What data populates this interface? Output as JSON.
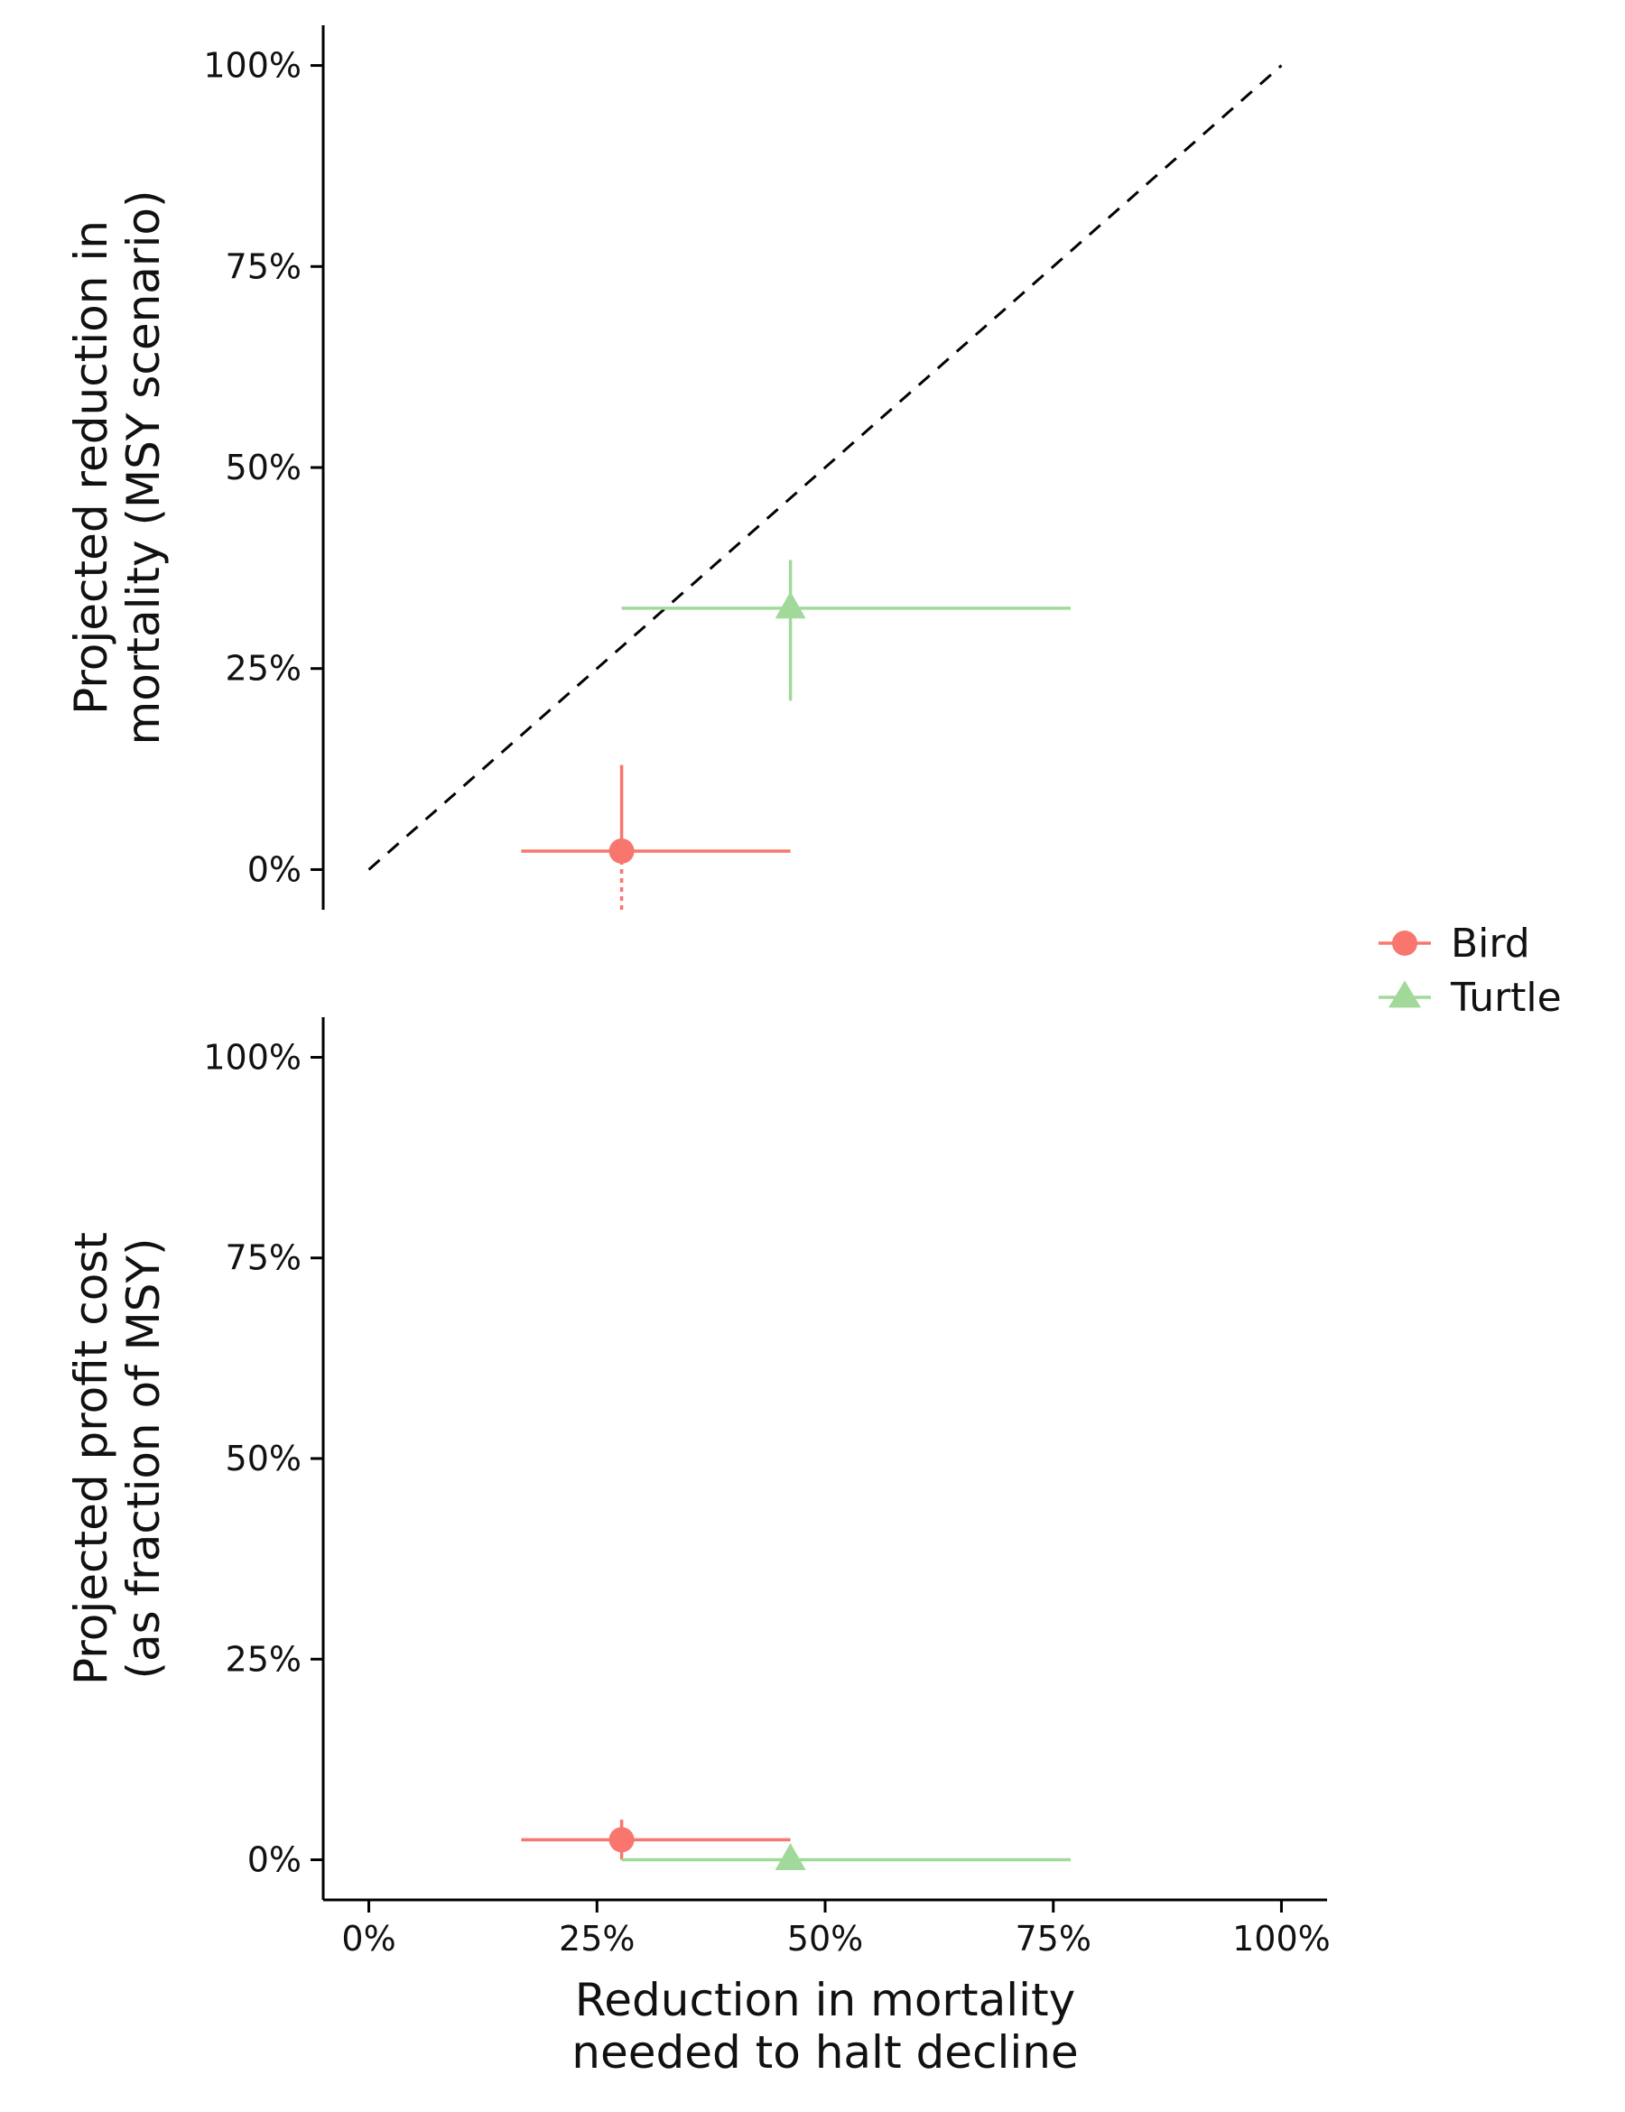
{
  "legend": {
    "position": "right",
    "entries": [
      {
        "name": "Bird",
        "color": "#F8766D",
        "shape": "circle"
      },
      {
        "name": "Turtle",
        "color": "#A1D99B",
        "shape": "triangle"
      }
    ]
  },
  "chart_data": [
    {
      "type": "scatter",
      "panel": "top",
      "ylabel": [
        "Projected reduction in",
        "mortality (MSY scenario)"
      ],
      "xlabel": "",
      "xlim": [
        -0.05,
        1.05
      ],
      "ylim": [
        -0.05,
        1.05
      ],
      "y_ticks": [
        0,
        0.25,
        0.5,
        0.75,
        1.0
      ],
      "y_tick_labels": [
        "0%",
        "25%",
        "50%",
        "75%",
        "100%"
      ],
      "x_ticks": [],
      "x_tick_labels": [],
      "grid": false,
      "reference_line": {
        "style": "dashed",
        "color": "#000000",
        "from": [
          0,
          0
        ],
        "to": [
          1,
          1
        ]
      },
      "series": [
        {
          "name": "Bird",
          "color": "#F8766D",
          "shape": "circle",
          "points": [
            {
              "x": 0.277,
              "y": 0.023,
              "x_low": 0.167,
              "x_high": 0.462,
              "y_low": -0.05,
              "y_high": 0.13,
              "y_low_dotted": true
            }
          ]
        },
        {
          "name": "Turtle",
          "color": "#A1D99B",
          "shape": "triangle",
          "points": [
            {
              "x": 0.462,
              "y": 0.325,
              "x_low": 0.277,
              "x_high": 0.769,
              "y_low": 0.21,
              "y_high": 0.385
            }
          ]
        }
      ]
    },
    {
      "type": "scatter",
      "panel": "bottom",
      "ylabel": [
        "Projected profit cost",
        "(as fraction of MSY)"
      ],
      "xlabel": [
        "Reduction in mortality",
        "needed to halt decline"
      ],
      "xlim": [
        -0.05,
        1.05
      ],
      "ylim": [
        -0.05,
        1.05
      ],
      "y_ticks": [
        0,
        0.25,
        0.5,
        0.75,
        1.0
      ],
      "y_tick_labels": [
        "0%",
        "25%",
        "50%",
        "75%",
        "100%"
      ],
      "x_ticks": [
        0,
        0.25,
        0.5,
        0.75,
        1.0
      ],
      "x_tick_labels": [
        "0%",
        "25%",
        "50%",
        "75%",
        "100%"
      ],
      "grid": false,
      "series": [
        {
          "name": "Bird",
          "color": "#F8766D",
          "shape": "circle",
          "points": [
            {
              "x": 0.277,
              "y": 0.025,
              "x_low": 0.167,
              "x_high": 0.462,
              "y_low": 0.0,
              "y_high": 0.05
            }
          ]
        },
        {
          "name": "Turtle",
          "color": "#A1D99B",
          "shape": "triangle",
          "points": [
            {
              "x": 0.462,
              "y": 0.0,
              "x_low": 0.277,
              "x_high": 0.769,
              "y_low": 0.0,
              "y_high": 0.0
            }
          ]
        }
      ]
    }
  ]
}
